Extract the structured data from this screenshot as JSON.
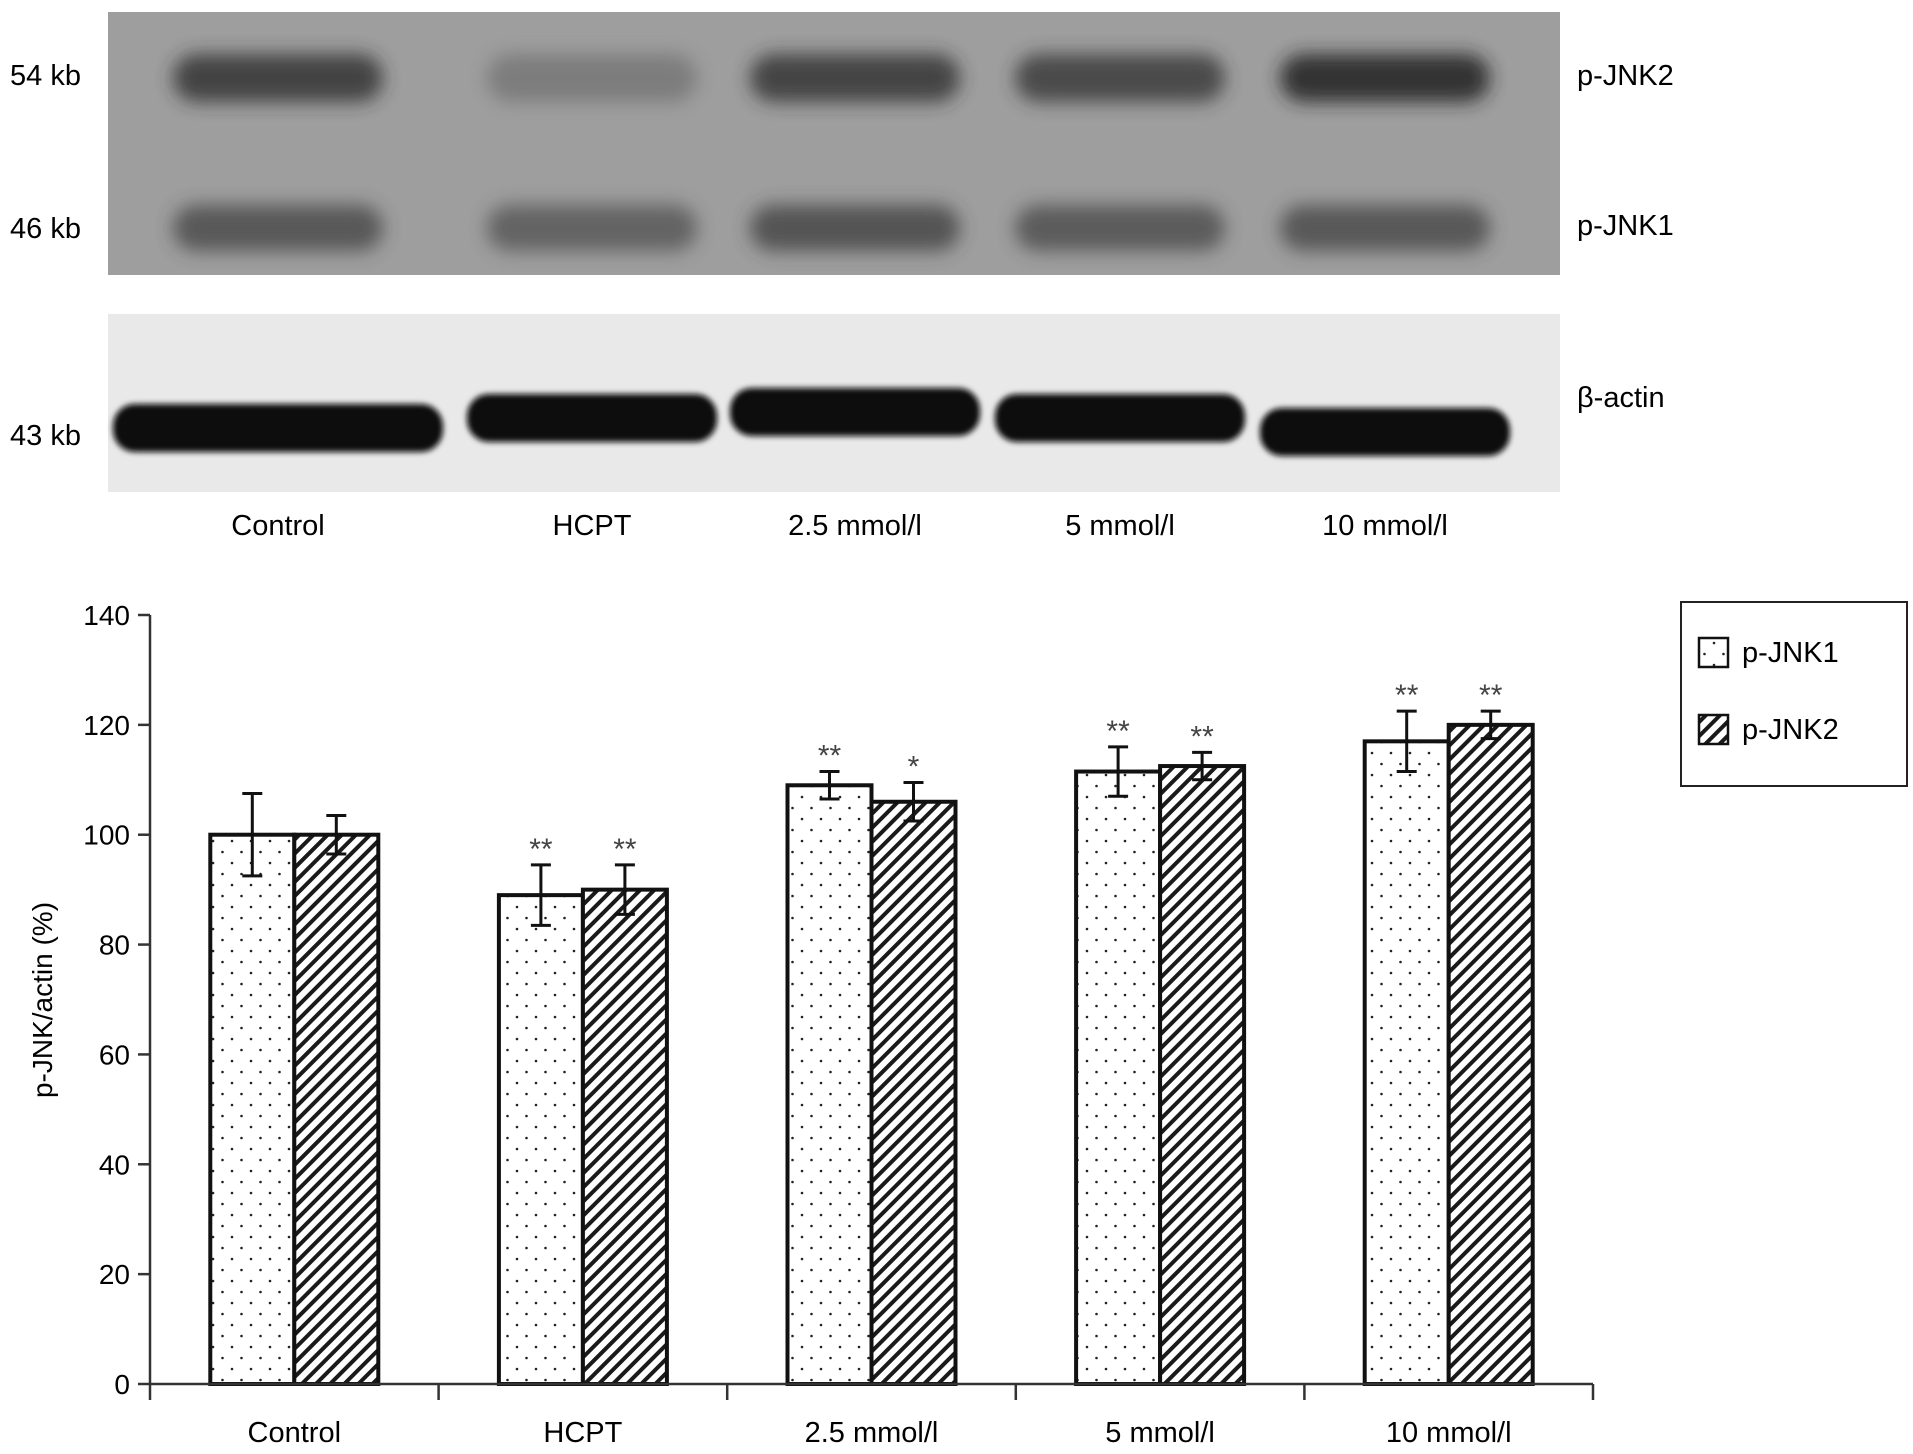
{
  "blot": {
    "pjnk_markers": [
      "54 kb",
      "46 kb"
    ],
    "pjnk_labels": [
      "p-JNK2",
      "p-JNK1"
    ],
    "actin_marker": "43 kb",
    "actin_label": "β-actin",
    "lanes": [
      "Control",
      "HCPT",
      "2.5 mmol/l",
      "5 mmol/l",
      "10 mmol/l"
    ],
    "pjnk2_band_intensity": [
      0.72,
      0.18,
      0.7,
      0.66,
      0.85
    ],
    "pjnk1_band_intensity": [
      0.55,
      0.45,
      0.58,
      0.52,
      0.55
    ],
    "actin_band_intensity": [
      0.95,
      0.92,
      0.95,
      0.93,
      0.9
    ]
  },
  "chart_data": {
    "type": "bar",
    "categories": [
      "Control",
      "HCPT",
      "2.5 mmol/l",
      "5 mmol/l",
      "10 mmol/l"
    ],
    "series": [
      {
        "name": "p-JNK1",
        "values": [
          100,
          89,
          109,
          111.5,
          117
        ],
        "errors": [
          7.5,
          5.5,
          2.5,
          4.5,
          5.5
        ],
        "significance": [
          "",
          "**",
          "**",
          "**",
          "**"
        ],
        "pattern": "dots"
      },
      {
        "name": "p-JNK2",
        "values": [
          100,
          90,
          106,
          112.5,
          120
        ],
        "errors": [
          3.5,
          4.5,
          3.5,
          2.5,
          2.5
        ],
        "significance": [
          "",
          "**",
          "*",
          "**",
          "**"
        ],
        "pattern": "hatch"
      }
    ],
    "ylabel": "p-JNK/actin (%)",
    "ylim": [
      0,
      140
    ],
    "yticks": [
      0,
      20,
      40,
      60,
      80,
      100,
      120,
      140
    ],
    "legend_position": "top-right",
    "grid": false
  }
}
